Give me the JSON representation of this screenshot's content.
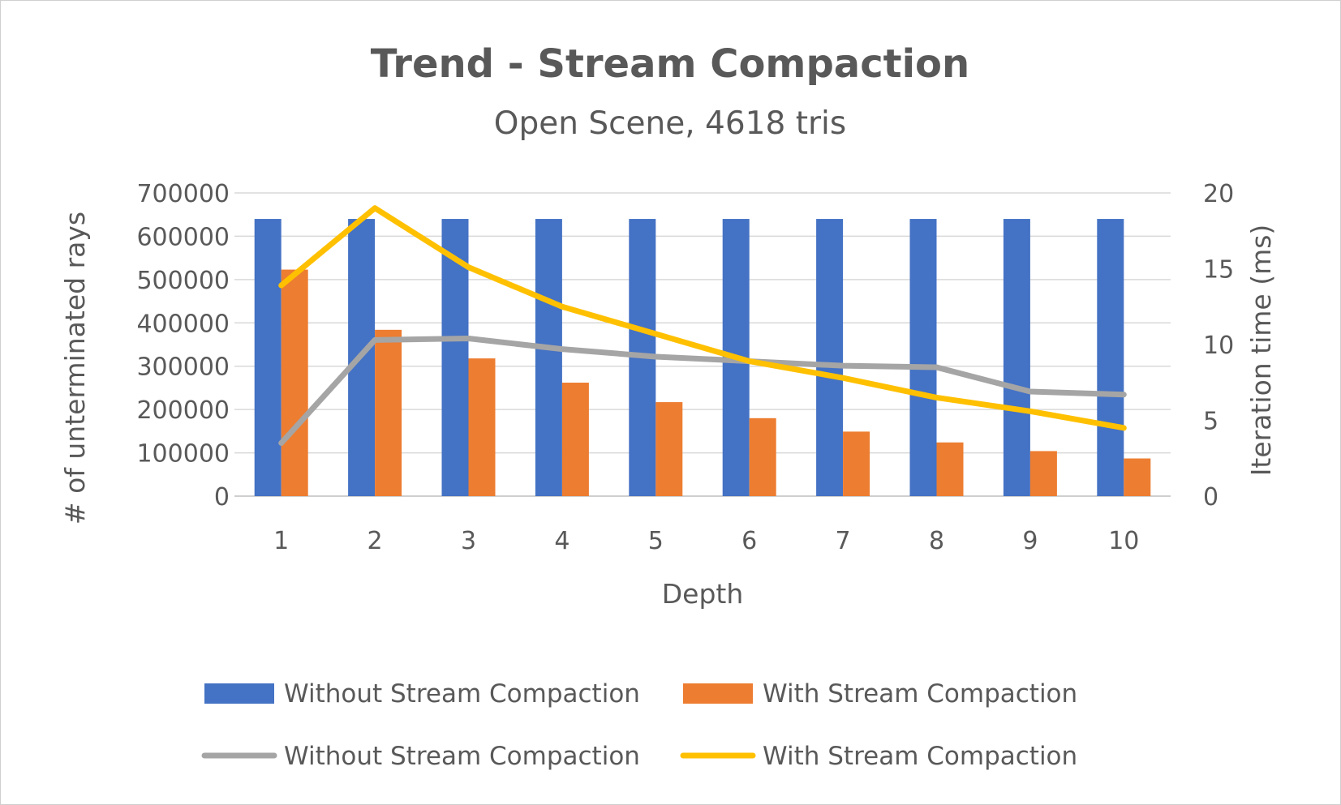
{
  "chart_data": {
    "type": "bar",
    "title": "Trend - Stream Compaction",
    "subtitle": "Open Scene, 4618 tris",
    "xlabel": "Depth",
    "ylabel_left": "# of unterminated rays",
    "ylabel_right": "Iteration time (ms)",
    "categories": [
      "1",
      "2",
      "3",
      "4",
      "5",
      "6",
      "7",
      "8",
      "9",
      "10"
    ],
    "y_left": {
      "min": 0,
      "max": 700000,
      "step": 100000,
      "ticks": [
        "0",
        "100000",
        "200000",
        "300000",
        "400000",
        "500000",
        "600000",
        "700000"
      ]
    },
    "y_right": {
      "min": 0,
      "max": 20,
      "step": 5,
      "ticks": [
        "0",
        "5",
        "10",
        "15",
        "20"
      ]
    },
    "grid": true,
    "legend_position": "bottom",
    "bar_series": [
      {
        "name": "Without Stream Compaction",
        "color": "#4472C4",
        "axis": "left",
        "values": [
          640000,
          640000,
          640000,
          640000,
          640000,
          640000,
          640000,
          640000,
          640000,
          640000
        ]
      },
      {
        "name": "With Stream Compaction",
        "color": "#ED7D31",
        "axis": "left",
        "values": [
          523000,
          384000,
          318000,
          262000,
          217000,
          180000,
          149000,
          124000,
          104000,
          87000
        ]
      }
    ],
    "line_series": [
      {
        "name": "Without Stream Compaction",
        "color": "#A5A5A5",
        "axis": "right",
        "values": [
          3.5,
          10.3,
          10.4,
          9.7,
          9.2,
          8.9,
          8.6,
          8.5,
          6.9,
          6.7
        ]
      },
      {
        "name": "With Stream Compaction",
        "color": "#FFC000",
        "axis": "right",
        "values": [
          13.9,
          19.0,
          15.1,
          12.5,
          10.7,
          8.9,
          7.8,
          6.5,
          5.6,
          4.5
        ]
      }
    ]
  }
}
